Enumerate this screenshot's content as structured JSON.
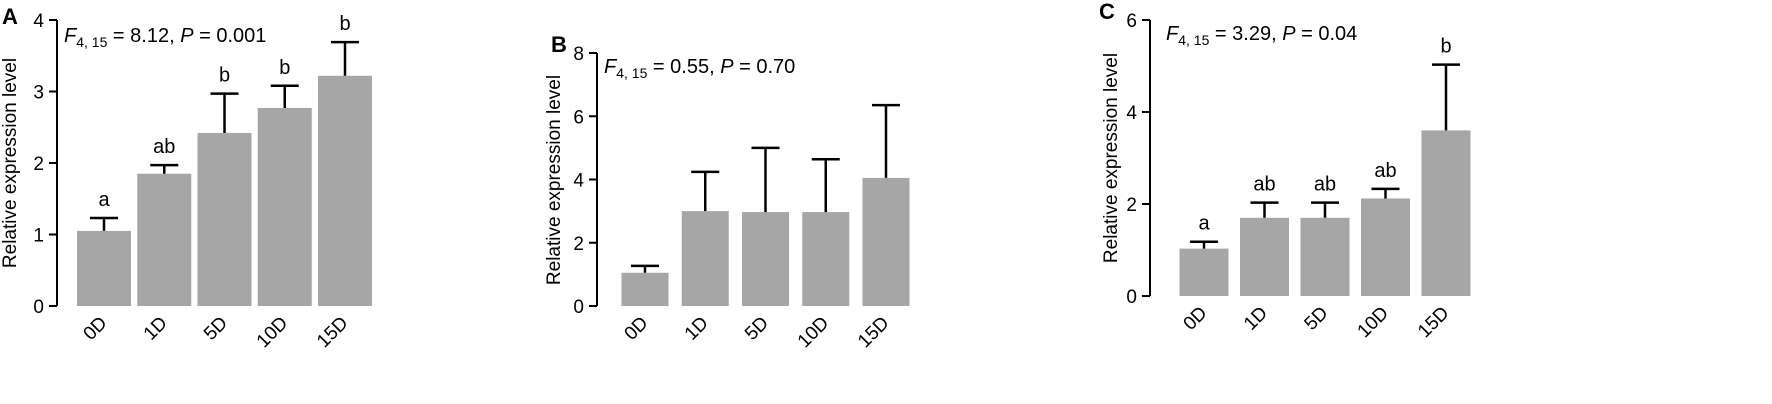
{
  "chart_data": [
    {
      "type": "bar",
      "panel": "A",
      "categories": [
        "0D",
        "1D",
        "5D",
        "10D",
        "15D"
      ],
      "values": [
        1.05,
        1.85,
        2.42,
        2.77,
        3.22
      ],
      "errors": [
        0.18,
        0.12,
        0.55,
        0.31,
        0.47
      ],
      "significance": [
        "a",
        "ab",
        "b",
        "b",
        "b"
      ],
      "ylabel": "Relative expression level",
      "ylim": [
        0,
        4
      ],
      "yticks": [
        0,
        1,
        2,
        3,
        4
      ],
      "stat": {
        "F": "F",
        "sub": "4, 15",
        "rest": " = 8.12, ",
        "P": "P",
        "tail": " = 0.001"
      },
      "bar_color": "#a6a6a6"
    },
    {
      "type": "bar",
      "panel": "B",
      "categories": [
        "0D",
        "1D",
        "5D",
        "10D",
        "15D"
      ],
      "values": [
        1.05,
        3.0,
        2.97,
        2.97,
        4.05
      ],
      "errors": [
        0.22,
        1.24,
        2.03,
        1.67,
        2.3
      ],
      "significance": [
        "",
        "",
        "",
        "",
        ""
      ],
      "ylabel": "Relative expression level",
      "ylim": [
        0,
        8
      ],
      "yticks": [
        0,
        2,
        4,
        6,
        8
      ],
      "stat": {
        "F": "F",
        "sub": "4, 15",
        "rest": " = 0.55, ",
        "P": "P",
        "tail": " = 0.70"
      },
      "bar_color": "#a6a6a6"
    },
    {
      "type": "bar",
      "panel": "C",
      "categories": [
        "0D",
        "1D",
        "5D",
        "10D",
        "15D"
      ],
      "values": [
        1.03,
        1.7,
        1.7,
        2.12,
        3.6
      ],
      "errors": [
        0.15,
        0.33,
        0.33,
        0.21,
        1.43
      ],
      "significance": [
        "a",
        "ab",
        "ab",
        "ab",
        "b"
      ],
      "ylabel": "Relative expression level",
      "ylim": [
        0,
        6
      ],
      "yticks": [
        0,
        2,
        4,
        6
      ],
      "stat": {
        "F": "F",
        "sub": "4, 15",
        "rest": " = 3.29, ",
        "P": "P",
        "tail": " = 0.04"
      },
      "bar_color": "#a6a6a6"
    }
  ]
}
